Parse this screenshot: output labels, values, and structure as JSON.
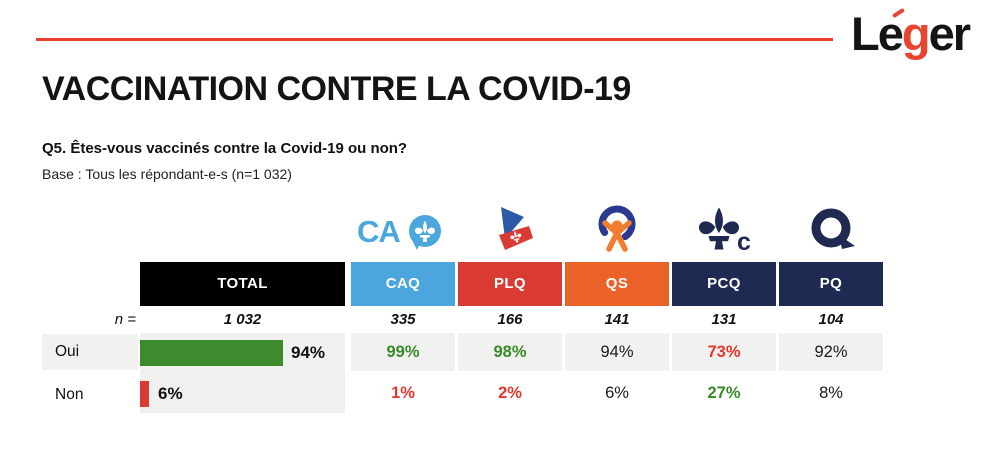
{
  "brand": {
    "full": "Léger",
    "black_left": "Le",
    "red_letter": "g",
    "black_right": "er"
  },
  "title": "VACCINATION CONTRE LA COVID-19",
  "question": "Q5. Êtes-vous vaccinés contre la Covid-19 ou non?",
  "base_note": "Base : Tous les répondant-e-s (n=1 032)",
  "colors": {
    "accent_red": "#ec3c30",
    "bar_green": "#3d8b2c",
    "bar_red": "#d93a32",
    "value_green": "#398a2b",
    "value_red": "#e5372d",
    "caq_blue": "#4ba6dd",
    "plq_red": "#d93a32",
    "qs_orange": "#ea6227",
    "navy": "#1f2a52",
    "cell_gray": "#f1f1ef"
  },
  "table": {
    "n_label": "n =",
    "row_oui": "Oui",
    "row_non": "Non",
    "total": {
      "header": "TOTAL",
      "header_bg": "#000000",
      "n": "1 032",
      "oui_label": "94%",
      "oui_pct": 94,
      "non_label": "6%",
      "non_pct": 6
    },
    "parties": [
      {
        "name": "CAQ",
        "header_bg": "#4ba6dd",
        "n": "335",
        "oui": "99%",
        "oui_class": "val-green",
        "non": "1%",
        "non_class": "val-red"
      },
      {
        "name": "PLQ",
        "header_bg": "#d93a32",
        "n": "166",
        "oui": "98%",
        "oui_class": "val-green",
        "non": "2%",
        "non_class": "val-red"
      },
      {
        "name": "QS",
        "header_bg": "#ea6227",
        "n": "141",
        "oui": "94%",
        "oui_class": "val-black",
        "non": "6%",
        "non_class": "val-black"
      },
      {
        "name": "PCQ",
        "header_bg": "#1f2a52",
        "n": "131",
        "oui": "73%",
        "oui_class": "val-red",
        "non": "27%",
        "non_class": "val-green"
      },
      {
        "name": "PQ",
        "header_bg": "#1f2a52",
        "n": "104",
        "oui": "92%",
        "oui_class": "val-black",
        "non": "8%",
        "non_class": "val-black"
      }
    ]
  },
  "chart_data": {
    "type": "bar",
    "title": "VACCINATION CONTRE LA COVID-19",
    "question": "Q5. Êtes-vous vaccinés contre la Covid-19 ou non?",
    "base": "Base : Tous les répondant-e-s (n=1 032)",
    "categories": [
      "Oui",
      "Non"
    ],
    "unit": "%",
    "series": [
      {
        "name": "TOTAL",
        "n": 1032,
        "values": [
          94,
          6
        ]
      },
      {
        "name": "CAQ",
        "n": 335,
        "values": [
          99,
          1
        ]
      },
      {
        "name": "PLQ",
        "n": 166,
        "values": [
          98,
          2
        ]
      },
      {
        "name": "QS",
        "n": 141,
        "values": [
          94,
          6
        ]
      },
      {
        "name": "PCQ",
        "n": 131,
        "values": [
          73,
          27
        ]
      },
      {
        "name": "PQ",
        "n": 104,
        "values": [
          92,
          8
        ]
      }
    ],
    "bar_colors": {
      "Oui": "#3d8b2c",
      "Non": "#d93a32"
    },
    "xlim": [
      0,
      100
    ],
    "notes": "Only TOTAL column is drawn as bars; party columns shown as colored percentages (green = significantly higher, red = significantly lower)."
  }
}
